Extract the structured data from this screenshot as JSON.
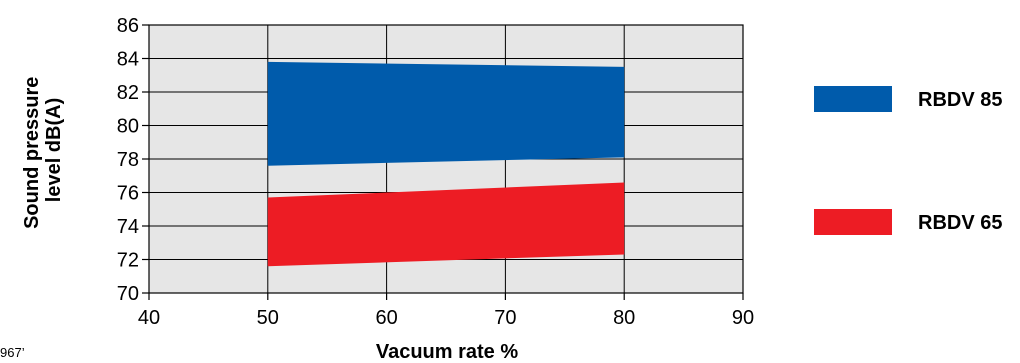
{
  "chart_data": {
    "type": "area",
    "title": "",
    "xlabel": "Vacuum rate %",
    "ylabel_lines": [
      "Sound pressure",
      "level dB(A)"
    ],
    "xlim": [
      40,
      90
    ],
    "ylim": [
      70,
      86
    ],
    "xticks": [
      40,
      50,
      60,
      70,
      80,
      90
    ],
    "yticks": [
      70,
      72,
      74,
      76,
      78,
      80,
      82,
      84,
      86
    ],
    "grid": true,
    "background": "#e6e6e6",
    "overlap_color": "#94506a",
    "legend_position": "right",
    "series": [
      {
        "name": "RBDV 85",
        "color": "#005bab",
        "x": [
          50,
          80
        ],
        "lower": [
          77.6,
          78.1
        ],
        "upper": [
          83.8,
          83.5
        ]
      },
      {
        "name": "RBDV 65",
        "color": "#ed1c24",
        "x": [
          50,
          80
        ],
        "lower": [
          71.6,
          72.3
        ],
        "upper": [
          75.7,
          76.6
        ]
      }
    ]
  },
  "corner_note": "967’"
}
